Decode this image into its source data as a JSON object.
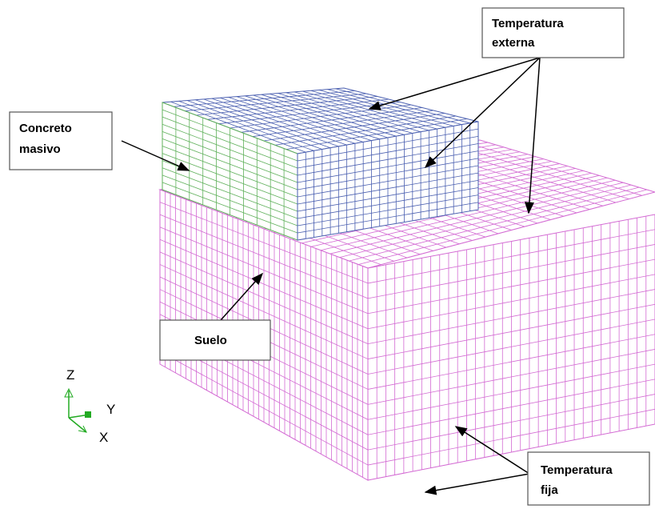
{
  "labels": [
    {
      "lines": [
        "Temperatura",
        "externa"
      ]
    },
    {
      "lines": [
        "Concreto",
        "masivo"
      ]
    },
    {
      "lines": [
        "Suelo"
      ]
    },
    {
      "lines": [
        "Temperatura",
        "fija"
      ]
    }
  ],
  "axes": {
    "z": "Z",
    "y": "Y",
    "x": "X"
  }
}
